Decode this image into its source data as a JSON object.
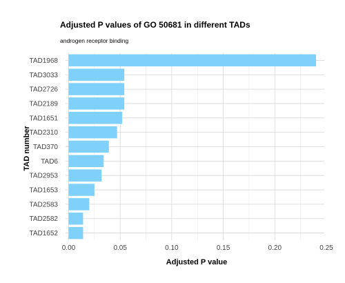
{
  "chart_data": {
    "type": "bar",
    "orientation": "horizontal",
    "title": "Adjusted P values of GO 50681 in different TADs",
    "subtitle": "androgen receptor binding",
    "xlabel": "Adjusted P value",
    "ylabel": "TAD number",
    "xlim": [
      -0.003,
      0.248
    ],
    "xticks": [
      0.0,
      0.05,
      0.1,
      0.15,
      0.2,
      0.25
    ],
    "xtick_labels": [
      "0.00",
      "0.05",
      "0.10",
      "0.15",
      "0.20",
      "0.25"
    ],
    "grid": true,
    "legend": "none",
    "bar_color": "#7fd0fb",
    "categories": [
      "TAD1968",
      "TAD3033",
      "TAD2726",
      "TAD2189",
      "TAD1651",
      "TAD2310",
      "TAD370",
      "TAD6",
      "TAD2953",
      "TAD1653",
      "TAD2583",
      "TAD2582",
      "TAD1652"
    ],
    "values": [
      0.24,
      0.054,
      0.054,
      0.054,
      0.052,
      0.047,
      0.039,
      0.034,
      0.032,
      0.025,
      0.02,
      0.014,
      0.014
    ]
  }
}
